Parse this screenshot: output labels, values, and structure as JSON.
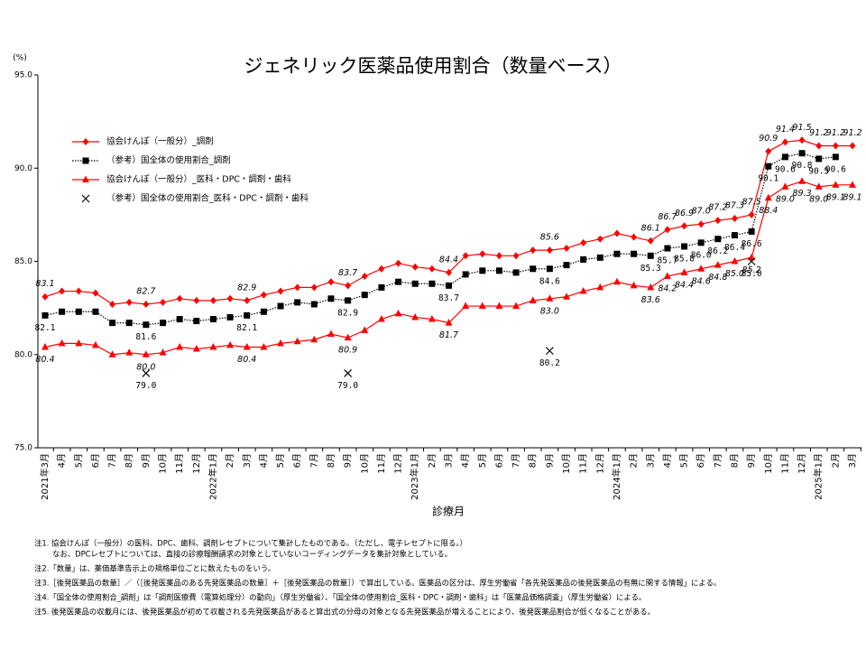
{
  "chart_data": {
    "type": "line",
    "title": "ジェネリック医薬品使用割合（数量ベース）",
    "y_unit": "(%)",
    "x_label": "診療月",
    "ylim": [
      75,
      95
    ],
    "yticks": [
      {
        "value": 75,
        "label": "75.0"
      },
      {
        "value": 80,
        "label": "80.0"
      },
      {
        "value": 85,
        "label": "85.0"
      },
      {
        "value": 90,
        "label": "90.0"
      },
      {
        "value": 95,
        "label": "95.0"
      }
    ],
    "grid": false,
    "legend": "upper left",
    "categories": [
      "2021年3月",
      "4月",
      "5月",
      "6月",
      "7月",
      "8月",
      "9月",
      "10月",
      "11月",
      "12月",
      "2022年1月",
      "2月",
      "3月",
      "4月",
      "5月",
      "6月",
      "7月",
      "8月",
      "9月",
      "10月",
      "11月",
      "12月",
      "2023年1月",
      "2月",
      "3月",
      "4月",
      "5月",
      "6月",
      "7月",
      "8月",
      "9月",
      "10月",
      "11月",
      "12月",
      "2024年1月",
      "2月",
      "3月",
      "4月",
      "5月",
      "6月",
      "7月",
      "8月",
      "9月",
      "10月",
      "11月",
      "12月",
      "2025年1月",
      "2月",
      "3月"
    ],
    "series": [
      {
        "name": "協会けんぽ（一般分）_調剤",
        "color": "#ff0000",
        "marker": "diamond",
        "line": "solid",
        "label_position": "above",
        "values": [
          83.1,
          83.4,
          83.4,
          83.3,
          82.7,
          82.8,
          82.7,
          82.8,
          83.0,
          82.9,
          82.9,
          83.0,
          82.9,
          83.2,
          83.4,
          83.6,
          83.6,
          83.9,
          83.7,
          84.2,
          84.6,
          84.9,
          84.7,
          84.6,
          84.4,
          85.3,
          85.4,
          85.3,
          85.3,
          85.6,
          85.6,
          85.7,
          86.0,
          86.2,
          86.5,
          86.3,
          86.1,
          86.7,
          86.9,
          87.0,
          87.2,
          87.3,
          87.5,
          90.9,
          91.4,
          91.5,
          91.2,
          91.2,
          91.2
        ],
        "value_labels": [
          "83.1",
          null,
          null,
          null,
          null,
          null,
          "82.7",
          null,
          null,
          null,
          null,
          null,
          "82.9",
          null,
          null,
          null,
          null,
          null,
          "83.7",
          null,
          null,
          null,
          null,
          null,
          "84.4",
          null,
          null,
          null,
          null,
          null,
          "85.6",
          null,
          null,
          null,
          null,
          null,
          "86.1",
          "86.7",
          "86.9",
          "87.0",
          "87.2",
          "87.3",
          "87.5",
          "90.9",
          "91.4",
          "91.5",
          "91.2",
          "91.2",
          "91.2"
        ]
      },
      {
        "name": "（参考）国全体の使用割合_調剤",
        "color": "#000000",
        "marker": "square",
        "line": "dotted",
        "label_position": "below",
        "values": [
          82.1,
          82.3,
          82.3,
          82.3,
          81.7,
          81.7,
          81.6,
          81.7,
          81.9,
          81.8,
          81.9,
          82.0,
          82.1,
          82.3,
          82.6,
          82.8,
          82.7,
          83.0,
          82.9,
          83.2,
          83.6,
          83.9,
          83.8,
          83.8,
          83.7,
          84.3,
          84.5,
          84.5,
          84.4,
          84.6,
          84.6,
          84.8,
          85.1,
          85.2,
          85.4,
          85.4,
          85.3,
          85.7,
          85.8,
          86.0,
          86.2,
          86.4,
          86.6,
          90.1,
          90.6,
          90.8,
          90.5,
          90.6,
          null
        ],
        "value_labels": [
          "82.1",
          null,
          null,
          null,
          null,
          null,
          "81.6",
          null,
          null,
          null,
          null,
          null,
          "82.1",
          null,
          null,
          null,
          null,
          null,
          "82.9",
          null,
          null,
          null,
          null,
          null,
          "83.7",
          null,
          null,
          null,
          null,
          null,
          "84.6",
          null,
          null,
          null,
          null,
          null,
          "85.3",
          "85.7",
          "85.8",
          "86.0",
          "86.2",
          "86.4",
          "86.6",
          "90.1",
          "90.6",
          "90.8",
          "90.5",
          "90.6",
          null
        ]
      },
      {
        "name": "協会けんぽ（一般分）_医科・DPC・調剤・歯科",
        "color": "#ff0000",
        "marker": "triangle",
        "line": "solid",
        "label_position": "below",
        "values": [
          80.4,
          80.6,
          80.6,
          80.5,
          80.0,
          80.1,
          80.0,
          80.1,
          80.4,
          80.3,
          80.4,
          80.5,
          80.4,
          80.4,
          80.6,
          80.7,
          80.8,
          81.1,
          80.9,
          81.3,
          81.9,
          82.2,
          82.0,
          81.9,
          81.7,
          82.6,
          82.6,
          82.6,
          82.6,
          82.9,
          83.0,
          83.1,
          83.4,
          83.6,
          83.9,
          83.7,
          83.6,
          84.2,
          84.4,
          84.6,
          84.8,
          85.0,
          85.2,
          88.4,
          89.0,
          89.3,
          89.0,
          89.1,
          89.1
        ],
        "value_labels": [
          "80.4",
          null,
          null,
          null,
          null,
          null,
          "80.0",
          null,
          null,
          null,
          null,
          null,
          "80.4",
          null,
          null,
          null,
          null,
          null,
          "80.9",
          null,
          null,
          null,
          null,
          null,
          "81.7",
          null,
          null,
          null,
          null,
          null,
          "83.0",
          null,
          null,
          null,
          null,
          null,
          "83.6",
          "84.2",
          "84.4",
          "84.6",
          "84.8",
          "85.0",
          "85.2",
          "88.4",
          "89.0",
          "89.3",
          "89.0",
          "89.1",
          "89.1"
        ]
      },
      {
        "name": "（参考）国全体の使用割合_医科・DPC・調剤・歯科",
        "color": "#000000",
        "marker": "x",
        "line": "none",
        "label_position": "below",
        "values": [
          null,
          null,
          null,
          null,
          null,
          null,
          79.0,
          null,
          null,
          null,
          null,
          null,
          null,
          null,
          null,
          null,
          null,
          null,
          79.0,
          null,
          null,
          null,
          null,
          null,
          null,
          null,
          null,
          null,
          null,
          null,
          80.2,
          null,
          null,
          null,
          null,
          null,
          null,
          null,
          null,
          null,
          null,
          null,
          85.0,
          null,
          null,
          null,
          null,
          null,
          null
        ],
        "value_labels": [
          null,
          null,
          null,
          null,
          null,
          null,
          "79.0",
          null,
          null,
          null,
          null,
          null,
          null,
          null,
          null,
          null,
          null,
          null,
          "79.0",
          null,
          null,
          null,
          null,
          null,
          null,
          null,
          null,
          null,
          null,
          null,
          "80.2",
          null,
          null,
          null,
          null,
          null,
          null,
          null,
          null,
          null,
          null,
          null,
          "85.0",
          null,
          null,
          null,
          null,
          null,
          null
        ]
      }
    ],
    "notes": [
      "注1. 協会けんぽ（一般分）の医科、DPC、歯科、調剤レセプトについて集計したものである。（ただし、電子レセプトに限る。）",
      "なお、DPCレセプトについては、直接の診療報酬請求の対象としていないコーディングデータを集計対象としている。",
      "注2.「数量」は、薬価基準告示上の規格単位ごとに数えたものをいう。",
      "注3.［後発医薬品の数量］／（［後発医薬品のある先発医薬品の数量］＋［後発医薬品の数量］）で算出している。医薬品の区分は、厚生労働省「各先発医薬品の後発医薬品の有無に関する情報」による。",
      "注4.「国全体の使用割合_調剤」は「調剤医療費（電算処理分）の動向」（厚生労働省）、「国全体の使用割合_医科・DPC・調剤・歯科」は「医薬品価格調査」（厚生労働省）による。",
      "注5. 後発医薬品の収載月には、後発医薬品が初めて収載される先発医薬品があると算出式の分母の対象となる先発医薬品が増えることにより、後発医薬品割合が低くなることがある。"
    ]
  }
}
